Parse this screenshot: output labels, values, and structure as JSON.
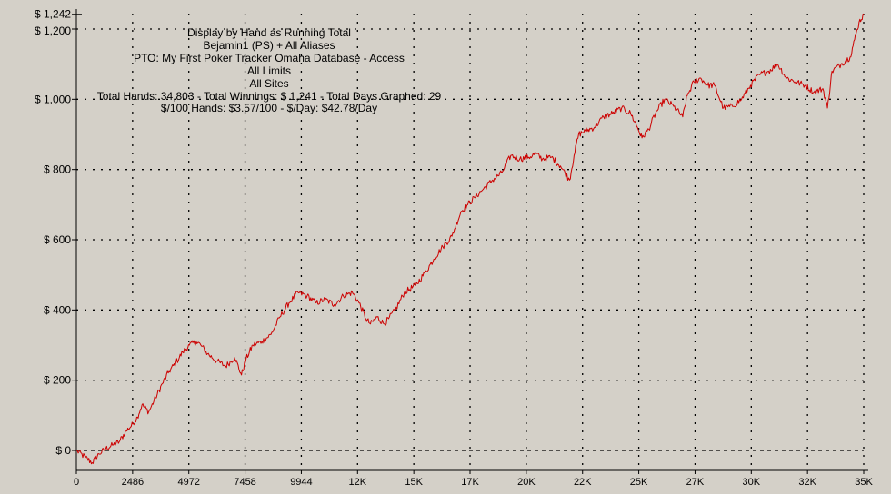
{
  "chart_data": {
    "type": "line",
    "info_lines": [
      "Display by Hand as Running Total",
      "Bejamin1 (PS) + All Aliases",
      "PTO: My First Poker Tracker Omaha Database - Access",
      "All Limits",
      "All Sites",
      "Total Hands: 34,803 - Total Winnings: $ 1,241 - Total Days Graphed: 29",
      "$/100 Hands: $3.57/100 - $/Day: $42.78/Day"
    ],
    "xlim": [
      0,
      34803
    ],
    "ylim": [
      -60,
      1242
    ],
    "x_ticks": [
      {
        "value": 0,
        "label": "0"
      },
      {
        "value": 2486,
        "label": "2486"
      },
      {
        "value": 4972,
        "label": "4972"
      },
      {
        "value": 7458,
        "label": "7458"
      },
      {
        "value": 9944,
        "label": "9944"
      },
      {
        "value": 12430,
        "label": "12K"
      },
      {
        "value": 14916,
        "label": "15K"
      },
      {
        "value": 17402,
        "label": "17K"
      },
      {
        "value": 19888,
        "label": "20K"
      },
      {
        "value": 22374,
        "label": "22K"
      },
      {
        "value": 24860,
        "label": "25K"
      },
      {
        "value": 27346,
        "label": "27K"
      },
      {
        "value": 29832,
        "label": "30K"
      },
      {
        "value": 32318,
        "label": "32K"
      },
      {
        "value": 34803,
        "label": "35K"
      }
    ],
    "y_ticks": [
      {
        "value": 0,
        "label": "$ 0"
      },
      {
        "value": 200,
        "label": "$ 200"
      },
      {
        "value": 400,
        "label": "$ 400"
      },
      {
        "value": 600,
        "label": "$ 600"
      },
      {
        "value": 800,
        "label": "$ 800"
      },
      {
        "value": 1000,
        "label": "$ 1,000"
      },
      {
        "value": 1200,
        "label": "$ 1,200"
      },
      {
        "value": 1242,
        "label": "$ 1,242"
      }
    ],
    "grid": true,
    "series": [
      {
        "color": "#cc0000",
        "x": [
          0,
          400,
          700,
          1000,
          1300,
          1600,
          1900,
          2200,
          2500,
          2700,
          2900,
          3200,
          3500,
          3800,
          4100,
          4400,
          4700,
          5000,
          5300,
          5500,
          5800,
          6200,
          6600,
          7000,
          7300,
          7500,
          7800,
          8200,
          8600,
          9000,
          9400,
          9800,
          10200,
          10600,
          11000,
          11400,
          11800,
          12200,
          12500,
          12800,
          13000,
          13300,
          13600,
          13800,
          14100,
          14500,
          15000,
          15400,
          15800,
          16200,
          16600,
          17000,
          17300,
          17600,
          18000,
          18400,
          18800,
          19200,
          19600,
          20000,
          20300,
          20600,
          21000,
          21400,
          21800,
          22000,
          22200,
          22500,
          22900,
          23300,
          23700,
          24100,
          24500,
          24800,
          25000,
          25300,
          25600,
          26000,
          26400,
          26800,
          27000,
          27300,
          27600,
          27900,
          28200,
          28600,
          29000,
          29400,
          29800,
          30200,
          30600,
          31000,
          31400,
          31800,
          32200,
          32600,
          33000,
          33200,
          33400,
          33800,
          34200,
          34400,
          34600,
          34803
        ],
        "y": [
          0,
          -20,
          -35,
          -10,
          5,
          15,
          25,
          55,
          75,
          95,
          130,
          110,
          150,
          190,
          225,
          250,
          280,
          300,
          310,
          300,
          275,
          255,
          240,
          265,
          215,
          260,
          300,
          310,
          330,
          380,
          420,
          450,
          440,
          420,
          430,
          415,
          440,
          450,
          420,
          375,
          360,
          380,
          360,
          375,
          400,
          450,
          470,
          505,
          545,
          580,
          610,
          680,
          700,
          720,
          745,
          770,
          790,
          840,
          830,
          835,
          845,
          830,
          835,
          810,
          770,
          840,
          900,
          910,
          920,
          950,
          960,
          975,
          960,
          920,
          890,
          915,
          960,
          1000,
          980,
          950,
          1010,
          1050,
          1060,
          1040,
          1040,
          975,
          980,
          1000,
          1040,
          1070,
          1080,
          1100,
          1060,
          1050,
          1040,
          1020,
          1030,
          975,
          1080,
          1100,
          1120,
          1170,
          1220,
          1241
        ]
      }
    ]
  }
}
